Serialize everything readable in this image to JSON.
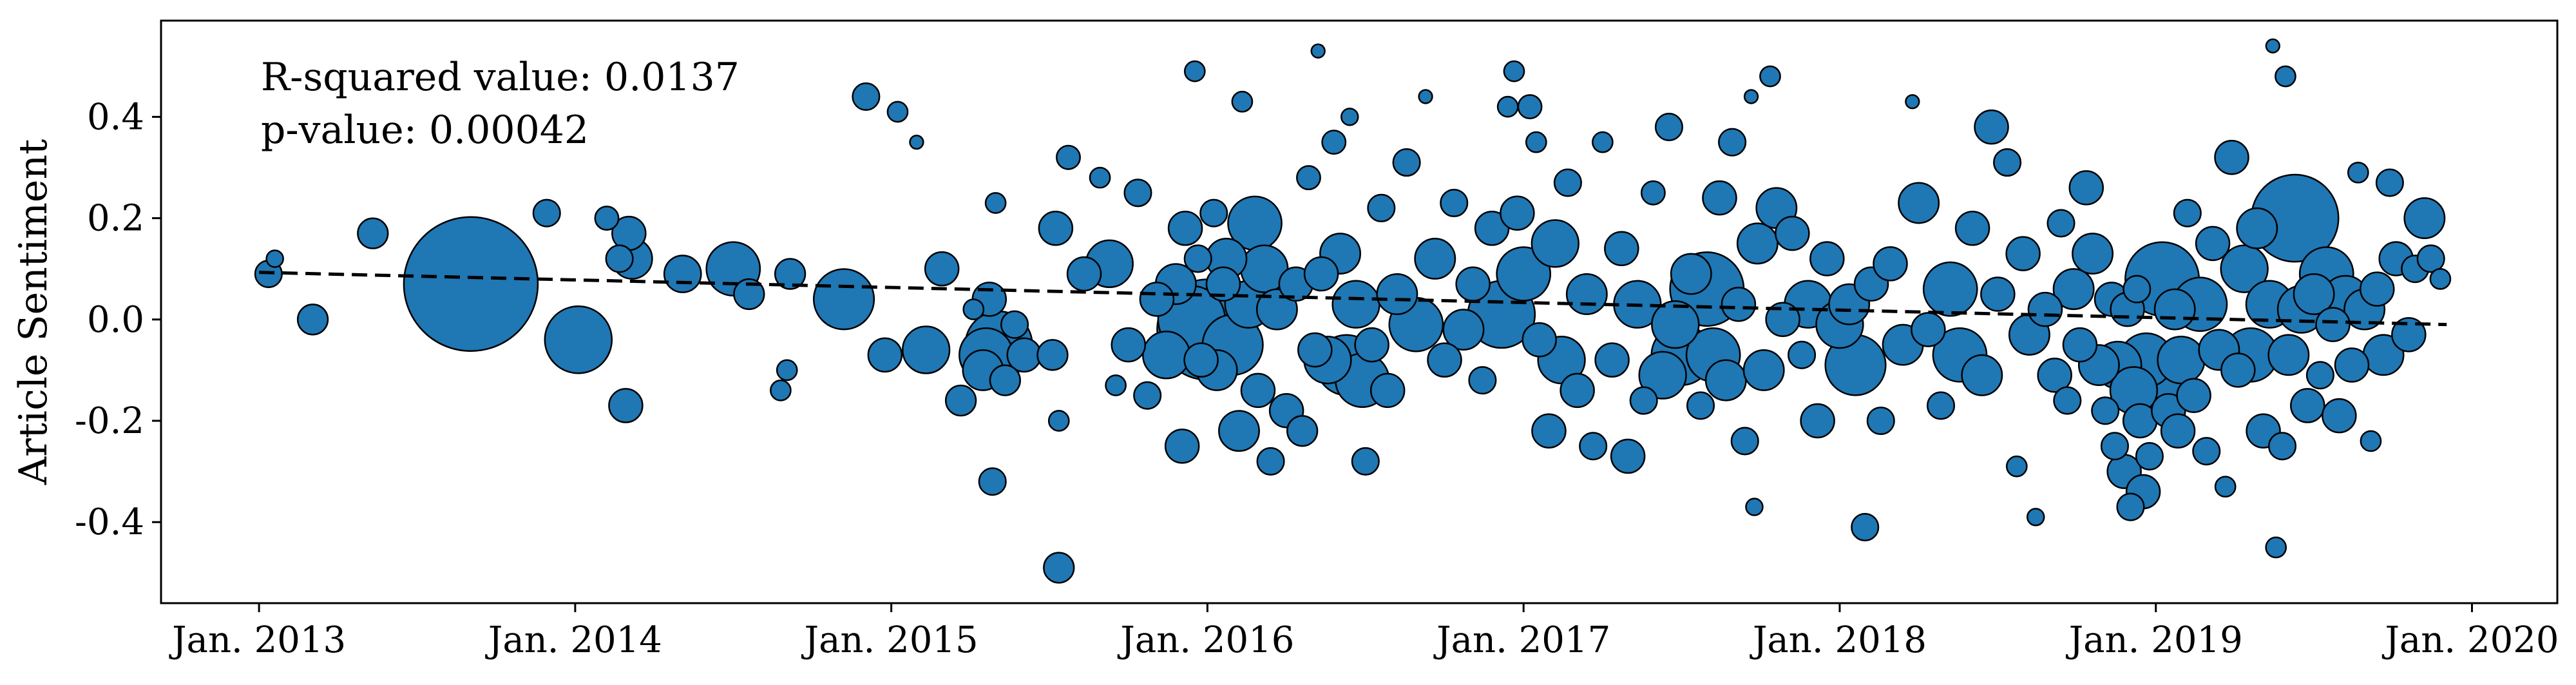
{
  "chart_data": {
    "type": "scatter",
    "ylabel": "Article Sentiment",
    "xlabel": "",
    "x_ticks": [
      {
        "label": "Jan. 2013",
        "value": 2013
      },
      {
        "label": "Jan. 2014",
        "value": 2014
      },
      {
        "label": "Jan. 2015",
        "value": 2015
      },
      {
        "label": "Jan. 2016",
        "value": 2016
      },
      {
        "label": "Jan. 2017",
        "value": 2017
      },
      {
        "label": "Jan. 2018",
        "value": 2018
      },
      {
        "label": "Jan. 2019",
        "value": 2019
      },
      {
        "label": "Jan. 2020",
        "value": 2020
      }
    ],
    "y_ticks": [
      {
        "label": "0.4",
        "value": 0.4
      },
      {
        "label": "0.2",
        "value": 0.2
      },
      {
        "label": "0.0",
        "value": 0.0
      },
      {
        "label": "-0.2",
        "value": -0.2
      },
      {
        "label": "-0.4",
        "value": -0.4
      }
    ],
    "xlim": [
      2012.69,
      2020.27
    ],
    "ylim": [
      -0.56,
      0.59
    ],
    "grid": false,
    "annotations": [
      "R-squared value: 0.0137",
      "p-value: 0.00042"
    ],
    "trendline": {
      "style": "dashed",
      "color": "#000000",
      "start": {
        "x": 2013.0,
        "y": 0.093
      },
      "end": {
        "x": 2019.92,
        "y": -0.01
      }
    },
    "marker": {
      "fill": "#1f77b4",
      "edge": "#000000",
      "size_encoded": true
    },
    "points": [
      {
        "x": 2013.03,
        "y": 0.09,
        "s": 8
      },
      {
        "x": 2013.05,
        "y": 0.12,
        "s": 5
      },
      {
        "x": 2013.17,
        "y": 0.0,
        "s": 9
      },
      {
        "x": 2013.36,
        "y": 0.17,
        "s": 9
      },
      {
        "x": 2013.67,
        "y": 0.07,
        "s": 40
      },
      {
        "x": 2013.91,
        "y": 0.21,
        "s": 8
      },
      {
        "x": 2014.01,
        "y": -0.04,
        "s": 20
      },
      {
        "x": 2014.1,
        "y": 0.2,
        "s": 7
      },
      {
        "x": 2014.14,
        "y": 0.12,
        "s": 8
      },
      {
        "x": 2014.16,
        "y": -0.17,
        "s": 10
      },
      {
        "x": 2014.17,
        "y": 0.17,
        "s": 10
      },
      {
        "x": 2014.18,
        "y": 0.12,
        "s": 12
      },
      {
        "x": 2014.34,
        "y": 0.09,
        "s": 11
      },
      {
        "x": 2014.5,
        "y": 0.1,
        "s": 16
      },
      {
        "x": 2014.55,
        "y": 0.05,
        "s": 9
      },
      {
        "x": 2014.65,
        "y": -0.14,
        "s": 6
      },
      {
        "x": 2014.67,
        "y": -0.1,
        "s": 6
      },
      {
        "x": 2014.68,
        "y": 0.09,
        "s": 9
      },
      {
        "x": 2014.85,
        "y": 0.04,
        "s": 18
      },
      {
        "x": 2014.92,
        "y": 0.44,
        "s": 8
      },
      {
        "x": 2014.98,
        "y": -0.07,
        "s": 10
      },
      {
        "x": 2015.02,
        "y": 0.41,
        "s": 6
      },
      {
        "x": 2015.08,
        "y": 0.35,
        "s": 4
      },
      {
        "x": 2015.11,
        "y": -0.06,
        "s": 14
      },
      {
        "x": 2015.16,
        "y": 0.1,
        "s": 10
      },
      {
        "x": 2015.22,
        "y": -0.16,
        "s": 9
      },
      {
        "x": 2015.26,
        "y": 0.02,
        "s": 6
      },
      {
        "x": 2015.29,
        "y": -0.1,
        "s": 12
      },
      {
        "x": 2015.3,
        "y": -0.07,
        "s": 16
      },
      {
        "x": 2015.31,
        "y": 0.04,
        "s": 10
      },
      {
        "x": 2015.32,
        "y": -0.32,
        "s": 8
      },
      {
        "x": 2015.33,
        "y": 0.23,
        "s": 6
      },
      {
        "x": 2015.34,
        "y": -0.05,
        "s": 20
      },
      {
        "x": 2015.36,
        "y": -0.12,
        "s": 9
      },
      {
        "x": 2015.39,
        "y": -0.01,
        "s": 8
      },
      {
        "x": 2015.42,
        "y": -0.07,
        "s": 10
      },
      {
        "x": 2015.51,
        "y": -0.07,
        "s": 9
      },
      {
        "x": 2015.52,
        "y": 0.18,
        "s": 10
      },
      {
        "x": 2015.53,
        "y": -0.49,
        "s": 9
      },
      {
        "x": 2015.53,
        "y": -0.2,
        "s": 6
      },
      {
        "x": 2015.56,
        "y": 0.32,
        "s": 7
      },
      {
        "x": 2015.61,
        "y": 0.09,
        "s": 10
      },
      {
        "x": 2015.66,
        "y": 0.28,
        "s": 6
      },
      {
        "x": 2015.69,
        "y": 0.11,
        "s": 14
      },
      {
        "x": 2015.71,
        "y": -0.13,
        "s": 6
      },
      {
        "x": 2015.75,
        "y": -0.05,
        "s": 10
      },
      {
        "x": 2015.78,
        "y": 0.25,
        "s": 8
      },
      {
        "x": 2015.81,
        "y": -0.15,
        "s": 8
      },
      {
        "x": 2015.84,
        "y": 0.04,
        "s": 10
      },
      {
        "x": 2015.87,
        "y": -0.07,
        "s": 14
      },
      {
        "x": 2015.9,
        "y": 0.07,
        "s": 12
      },
      {
        "x": 2015.92,
        "y": -0.25,
        "s": 10
      },
      {
        "x": 2015.93,
        "y": 0.18,
        "s": 10
      },
      {
        "x": 2015.95,
        "y": 0.0,
        "s": 20
      },
      {
        "x": 2015.96,
        "y": 0.49,
        "s": 6
      },
      {
        "x": 2015.97,
        "y": 0.12,
        "s": 8
      },
      {
        "x": 2015.98,
        "y": -0.08,
        "s": 10
      },
      {
        "x": 2016.0,
        "y": -0.02,
        "s": 30
      },
      {
        "x": 2016.02,
        "y": 0.21,
        "s": 8
      },
      {
        "x": 2016.03,
        "y": -0.1,
        "s": 12
      },
      {
        "x": 2016.05,
        "y": 0.07,
        "s": 10
      },
      {
        "x": 2016.06,
        "y": 0.12,
        "s": 12
      },
      {
        "x": 2016.08,
        "y": -0.05,
        "s": 18
      },
      {
        "x": 2016.1,
        "y": -0.22,
        "s": 12
      },
      {
        "x": 2016.11,
        "y": 0.43,
        "s": 6
      },
      {
        "x": 2016.13,
        "y": 0.03,
        "s": 14
      },
      {
        "x": 2016.15,
        "y": 0.19,
        "s": 16
      },
      {
        "x": 2016.16,
        "y": -0.14,
        "s": 10
      },
      {
        "x": 2016.18,
        "y": 0.1,
        "s": 14
      },
      {
        "x": 2016.2,
        "y": -0.28,
        "s": 8
      },
      {
        "x": 2016.22,
        "y": 0.02,
        "s": 12
      },
      {
        "x": 2016.25,
        "y": -0.18,
        "s": 10
      },
      {
        "x": 2016.28,
        "y": 0.07,
        "s": 10
      },
      {
        "x": 2016.3,
        "y": -0.22,
        "s": 9
      },
      {
        "x": 2016.32,
        "y": 0.28,
        "s": 7
      },
      {
        "x": 2016.34,
        "y": -0.06,
        "s": 10
      },
      {
        "x": 2016.35,
        "y": 0.53,
        "s": 4
      },
      {
        "x": 2016.36,
        "y": 0.09,
        "s": 10
      },
      {
        "x": 2016.38,
        "y": -0.08,
        "s": 14
      },
      {
        "x": 2016.4,
        "y": 0.35,
        "s": 7
      },
      {
        "x": 2016.42,
        "y": 0.13,
        "s": 12
      },
      {
        "x": 2016.44,
        "y": -0.09,
        "s": 18
      },
      {
        "x": 2016.45,
        "y": 0.4,
        "s": 5
      },
      {
        "x": 2016.47,
        "y": 0.03,
        "s": 14
      },
      {
        "x": 2016.49,
        "y": -0.12,
        "s": 16
      },
      {
        "x": 2016.5,
        "y": -0.28,
        "s": 8
      },
      {
        "x": 2016.52,
        "y": -0.05,
        "s": 10
      },
      {
        "x": 2016.55,
        "y": 0.22,
        "s": 8
      },
      {
        "x": 2016.57,
        "y": -0.14,
        "s": 10
      },
      {
        "x": 2016.6,
        "y": 0.05,
        "s": 12
      },
      {
        "x": 2016.63,
        "y": 0.31,
        "s": 8
      },
      {
        "x": 2016.66,
        "y": -0.01,
        "s": 16
      },
      {
        "x": 2016.69,
        "y": 0.44,
        "s": 4
      },
      {
        "x": 2016.72,
        "y": 0.12,
        "s": 12
      },
      {
        "x": 2016.75,
        "y": -0.08,
        "s": 10
      },
      {
        "x": 2016.78,
        "y": 0.23,
        "s": 8
      },
      {
        "x": 2016.81,
        "y": -0.02,
        "s": 12
      },
      {
        "x": 2016.84,
        "y": 0.07,
        "s": 10
      },
      {
        "x": 2016.87,
        "y": -0.12,
        "s": 8
      },
      {
        "x": 2016.9,
        "y": 0.18,
        "s": 10
      },
      {
        "x": 2016.93,
        "y": 0.01,
        "s": 20
      },
      {
        "x": 2016.95,
        "y": 0.42,
        "s": 6
      },
      {
        "x": 2016.97,
        "y": 0.49,
        "s": 6
      },
      {
        "x": 2016.98,
        "y": 0.21,
        "s": 10
      },
      {
        "x": 2017.0,
        "y": 0.09,
        "s": 16
      },
      {
        "x": 2017.02,
        "y": 0.42,
        "s": 7
      },
      {
        "x": 2017.04,
        "y": 0.35,
        "s": 6
      },
      {
        "x": 2017.05,
        "y": -0.04,
        "s": 10
      },
      {
        "x": 2017.08,
        "y": -0.22,
        "s": 10
      },
      {
        "x": 2017.1,
        "y": 0.15,
        "s": 14
      },
      {
        "x": 2017.12,
        "y": -0.08,
        "s": 14
      },
      {
        "x": 2017.14,
        "y": 0.27,
        "s": 8
      },
      {
        "x": 2017.17,
        "y": -0.14,
        "s": 10
      },
      {
        "x": 2017.2,
        "y": 0.05,
        "s": 12
      },
      {
        "x": 2017.22,
        "y": -0.25,
        "s": 8
      },
      {
        "x": 2017.25,
        "y": 0.35,
        "s": 6
      },
      {
        "x": 2017.28,
        "y": -0.08,
        "s": 10
      },
      {
        "x": 2017.31,
        "y": 0.14,
        "s": 10
      },
      {
        "x": 2017.33,
        "y": -0.27,
        "s": 10
      },
      {
        "x": 2017.36,
        "y": 0.03,
        "s": 14
      },
      {
        "x": 2017.38,
        "y": -0.16,
        "s": 8
      },
      {
        "x": 2017.41,
        "y": 0.25,
        "s": 7
      },
      {
        "x": 2017.44,
        "y": -0.11,
        "s": 14
      },
      {
        "x": 2017.46,
        "y": 0.38,
        "s": 8
      },
      {
        "x": 2017.48,
        "y": -0.01,
        "s": 14
      },
      {
        "x": 2017.5,
        "y": -0.07,
        "s": 18
      },
      {
        "x": 2017.53,
        "y": 0.09,
        "s": 12
      },
      {
        "x": 2017.56,
        "y": -0.17,
        "s": 8
      },
      {
        "x": 2017.58,
        "y": 0.06,
        "s": 22
      },
      {
        "x": 2017.6,
        "y": -0.07,
        "s": 16
      },
      {
        "x": 2017.62,
        "y": 0.24,
        "s": 10
      },
      {
        "x": 2017.64,
        "y": -0.12,
        "s": 12
      },
      {
        "x": 2017.66,
        "y": 0.35,
        "s": 8
      },
      {
        "x": 2017.68,
        "y": 0.03,
        "s": 10
      },
      {
        "x": 2017.7,
        "y": -0.24,
        "s": 8
      },
      {
        "x": 2017.72,
        "y": 0.44,
        "s": 4
      },
      {
        "x": 2017.73,
        "y": -0.37,
        "s": 5
      },
      {
        "x": 2017.74,
        "y": 0.15,
        "s": 12
      },
      {
        "x": 2017.76,
        "y": -0.1,
        "s": 12
      },
      {
        "x": 2017.78,
        "y": 0.48,
        "s": 6
      },
      {
        "x": 2017.8,
        "y": 0.22,
        "s": 12
      },
      {
        "x": 2017.82,
        "y": 0.0,
        "s": 10
      },
      {
        "x": 2017.85,
        "y": 0.17,
        "s": 10
      },
      {
        "x": 2017.88,
        "y": -0.07,
        "s": 8
      },
      {
        "x": 2017.9,
        "y": 0.03,
        "s": 14
      },
      {
        "x": 2017.93,
        "y": -0.2,
        "s": 10
      },
      {
        "x": 2017.96,
        "y": 0.12,
        "s": 10
      },
      {
        "x": 2018.0,
        "y": -0.01,
        "s": 14
      },
      {
        "x": 2018.03,
        "y": 0.03,
        "s": 12
      },
      {
        "x": 2018.05,
        "y": -0.09,
        "s": 18
      },
      {
        "x": 2018.08,
        "y": -0.41,
        "s": 8
      },
      {
        "x": 2018.1,
        "y": 0.07,
        "s": 10
      },
      {
        "x": 2018.13,
        "y": -0.2,
        "s": 8
      },
      {
        "x": 2018.16,
        "y": 0.11,
        "s": 10
      },
      {
        "x": 2018.2,
        "y": -0.05,
        "s": 12
      },
      {
        "x": 2018.23,
        "y": 0.43,
        "s": 4
      },
      {
        "x": 2018.25,
        "y": 0.23,
        "s": 12
      },
      {
        "x": 2018.28,
        "y": -0.02,
        "s": 10
      },
      {
        "x": 2018.32,
        "y": -0.17,
        "s": 8
      },
      {
        "x": 2018.35,
        "y": 0.06,
        "s": 16
      },
      {
        "x": 2018.38,
        "y": -0.07,
        "s": 16
      },
      {
        "x": 2018.42,
        "y": 0.18,
        "s": 10
      },
      {
        "x": 2018.45,
        "y": -0.11,
        "s": 12
      },
      {
        "x": 2018.48,
        "y": 0.38,
        "s": 10
      },
      {
        "x": 2018.5,
        "y": 0.05,
        "s": 10
      },
      {
        "x": 2018.53,
        "y": 0.31,
        "s": 8
      },
      {
        "x": 2018.56,
        "y": -0.29,
        "s": 6
      },
      {
        "x": 2018.58,
        "y": 0.13,
        "s": 10
      },
      {
        "x": 2018.6,
        "y": -0.03,
        "s": 12
      },
      {
        "x": 2018.62,
        "y": -0.39,
        "s": 5
      },
      {
        "x": 2018.65,
        "y": 0.02,
        "s": 10
      },
      {
        "x": 2018.68,
        "y": -0.11,
        "s": 10
      },
      {
        "x": 2018.7,
        "y": 0.19,
        "s": 8
      },
      {
        "x": 2018.72,
        "y": -0.16,
        "s": 8
      },
      {
        "x": 2018.74,
        "y": 0.06,
        "s": 12
      },
      {
        "x": 2018.76,
        "y": -0.05,
        "s": 10
      },
      {
        "x": 2018.78,
        "y": 0.26,
        "s": 10
      },
      {
        "x": 2018.8,
        "y": 0.13,
        "s": 12
      },
      {
        "x": 2018.82,
        "y": -0.09,
        "s": 12
      },
      {
        "x": 2018.84,
        "y": -0.18,
        "s": 8
      },
      {
        "x": 2018.86,
        "y": 0.04,
        "s": 10
      },
      {
        "x": 2018.87,
        "y": -0.25,
        "s": 8
      },
      {
        "x": 2018.88,
        "y": -0.09,
        "s": 14
      },
      {
        "x": 2018.9,
        "y": -0.3,
        "s": 10
      },
      {
        "x": 2018.91,
        "y": 0.02,
        "s": 10
      },
      {
        "x": 2018.92,
        "y": -0.37,
        "s": 8
      },
      {
        "x": 2018.93,
        "y": -0.14,
        "s": 14
      },
      {
        "x": 2018.94,
        "y": 0.06,
        "s": 8
      },
      {
        "x": 2018.95,
        "y": -0.2,
        "s": 10
      },
      {
        "x": 2018.96,
        "y": -0.34,
        "s": 10
      },
      {
        "x": 2018.97,
        "y": -0.08,
        "s": 16
      },
      {
        "x": 2018.98,
        "y": -0.27,
        "s": 8
      },
      {
        "x": 2019.0,
        "y": -0.12,
        "s": 20
      },
      {
        "x": 2019.02,
        "y": 0.08,
        "s": 22
      },
      {
        "x": 2019.04,
        "y": -0.18,
        "s": 10
      },
      {
        "x": 2019.06,
        "y": 0.02,
        "s": 12
      },
      {
        "x": 2019.07,
        "y": -0.22,
        "s": 10
      },
      {
        "x": 2019.08,
        "y": -0.08,
        "s": 14
      },
      {
        "x": 2019.1,
        "y": 0.21,
        "s": 8
      },
      {
        "x": 2019.12,
        "y": -0.15,
        "s": 10
      },
      {
        "x": 2019.14,
        "y": 0.03,
        "s": 16
      },
      {
        "x": 2019.16,
        "y": -0.26,
        "s": 8
      },
      {
        "x": 2019.18,
        "y": 0.15,
        "s": 10
      },
      {
        "x": 2019.2,
        "y": -0.06,
        "s": 12
      },
      {
        "x": 2019.22,
        "y": -0.33,
        "s": 6
      },
      {
        "x": 2019.24,
        "y": 0.32,
        "s": 10
      },
      {
        "x": 2019.26,
        "y": -0.1,
        "s": 10
      },
      {
        "x": 2019.28,
        "y": 0.1,
        "s": 14
      },
      {
        "x": 2019.3,
        "y": -0.07,
        "s": 16
      },
      {
        "x": 2019.32,
        "y": 0.18,
        "s": 12
      },
      {
        "x": 2019.34,
        "y": -0.22,
        "s": 10
      },
      {
        "x": 2019.36,
        "y": 0.03,
        "s": 14
      },
      {
        "x": 2019.37,
        "y": 0.54,
        "s": 4
      },
      {
        "x": 2019.38,
        "y": -0.45,
        "s": 6
      },
      {
        "x": 2019.4,
        "y": -0.25,
        "s": 8
      },
      {
        "x": 2019.41,
        "y": 0.48,
        "s": 6
      },
      {
        "x": 2019.42,
        "y": -0.07,
        "s": 12
      },
      {
        "x": 2019.44,
        "y": 0.2,
        "s": 26
      },
      {
        "x": 2019.46,
        "y": 0.02,
        "s": 14
      },
      {
        "x": 2019.48,
        "y": -0.17,
        "s": 10
      },
      {
        "x": 2019.5,
        "y": 0.05,
        "s": 12
      },
      {
        "x": 2019.52,
        "y": -0.11,
        "s": 8
      },
      {
        "x": 2019.54,
        "y": 0.09,
        "s": 16
      },
      {
        "x": 2019.56,
        "y": -0.01,
        "s": 10
      },
      {
        "x": 2019.58,
        "y": -0.19,
        "s": 10
      },
      {
        "x": 2019.6,
        "y": 0.04,
        "s": 14
      },
      {
        "x": 2019.62,
        "y": -0.09,
        "s": 10
      },
      {
        "x": 2019.64,
        "y": 0.29,
        "s": 6
      },
      {
        "x": 2019.66,
        "y": 0.02,
        "s": 12
      },
      {
        "x": 2019.68,
        "y": -0.24,
        "s": 6
      },
      {
        "x": 2019.7,
        "y": 0.06,
        "s": 10
      },
      {
        "x": 2019.72,
        "y": -0.07,
        "s": 12
      },
      {
        "x": 2019.74,
        "y": 0.27,
        "s": 8
      },
      {
        "x": 2019.76,
        "y": 0.12,
        "s": 10
      },
      {
        "x": 2019.8,
        "y": -0.03,
        "s": 10
      },
      {
        "x": 2019.82,
        "y": 0.1,
        "s": 8
      },
      {
        "x": 2019.85,
        "y": 0.2,
        "s": 12
      },
      {
        "x": 2019.87,
        "y": 0.12,
        "s": 8
      },
      {
        "x": 2019.9,
        "y": 0.08,
        "s": 6
      }
    ]
  }
}
